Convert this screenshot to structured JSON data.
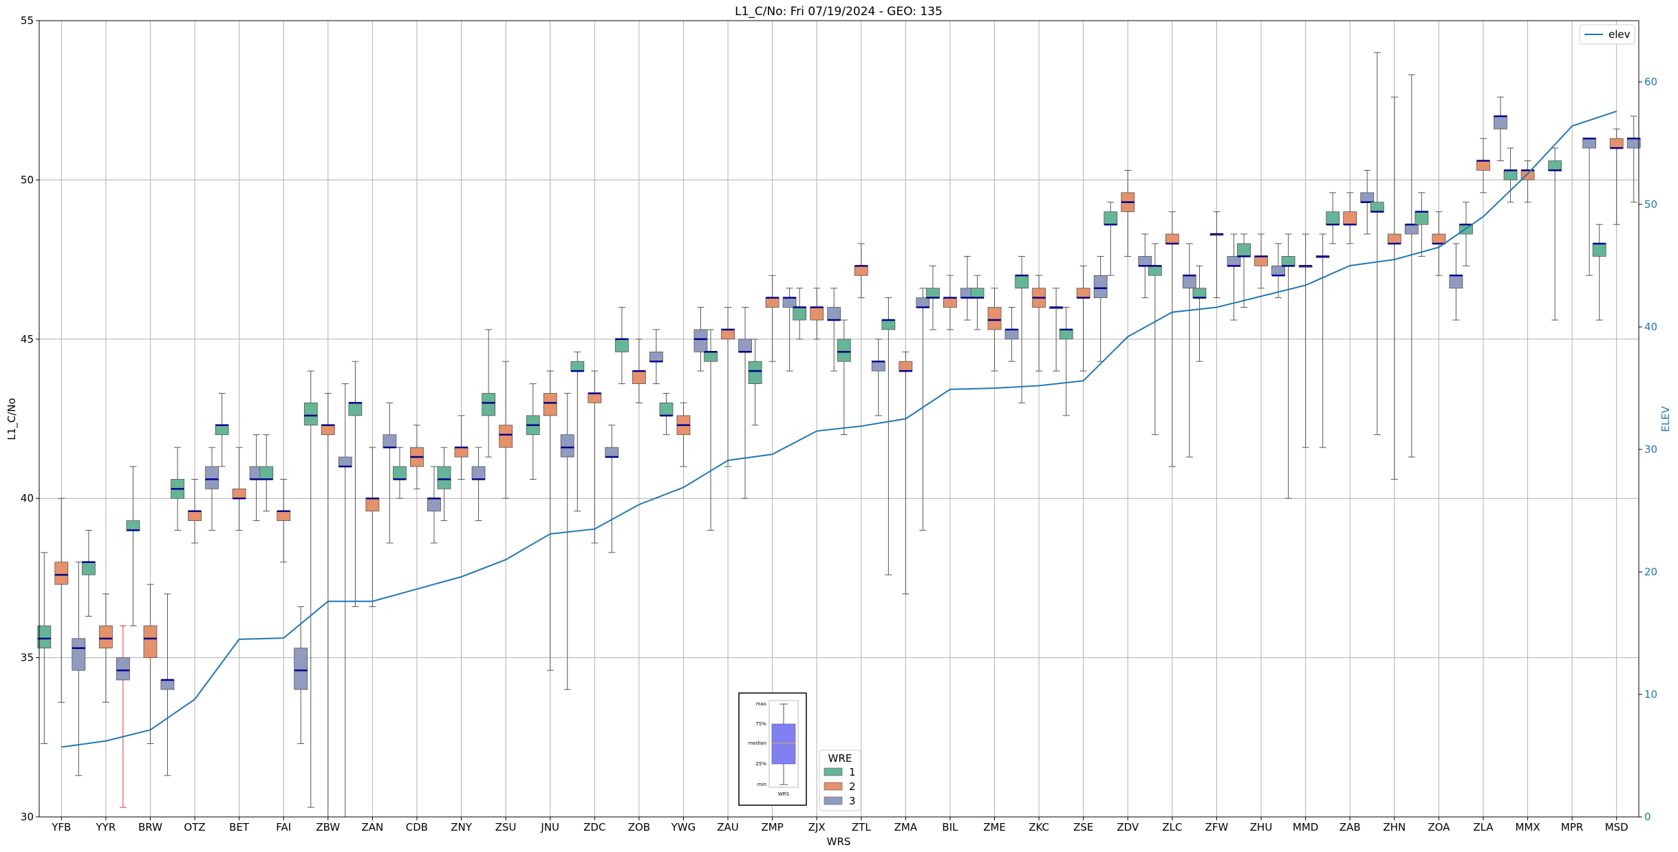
{
  "chart_data": {
    "type": "box",
    "title": "L1_C/No: Fri 07/19/2024 - GEO: 135",
    "xlabel": "WRS",
    "ylabel": "L1_C/No",
    "y2label": "ELEV",
    "ylim": [
      30,
      55
    ],
    "y2lim": [
      0,
      65
    ],
    "yticks": [
      30,
      35,
      40,
      45,
      50,
      55
    ],
    "y2ticks": [
      0,
      10,
      20,
      30,
      40,
      50,
      60
    ],
    "grid": true,
    "categories": [
      "YFB",
      "YYR",
      "BRW",
      "OTZ",
      "BET",
      "FAI",
      "ZBW",
      "ZAN",
      "CDB",
      "ZNY",
      "ZSU",
      "JNU",
      "ZDC",
      "ZOB",
      "YWG",
      "ZAU",
      "ZMP",
      "ZJX",
      "ZTL",
      "ZMA",
      "BIL",
      "ZME",
      "ZKC",
      "ZSE",
      "ZDV",
      "ZLC",
      "ZFW",
      "ZHU",
      "MMD",
      "ZAB",
      "ZHN",
      "ZOA",
      "ZLA",
      "MMX",
      "MPR",
      "MSD"
    ],
    "legend_wre": {
      "title": "WRE",
      "labels": [
        "1",
        "2",
        "3"
      ],
      "colors": [
        "#66b596",
        "#e5916c",
        "#919bc0"
      ]
    },
    "legend_line": {
      "label": "elev",
      "color": "#1f77b4"
    },
    "box_colors": {
      "median": "#00008b",
      "whisker": "#555555",
      "outlier_whisker": "#e8333a"
    },
    "inset": {
      "labels": [
        "max",
        "75%",
        "median",
        "25%",
        "min"
      ],
      "xlabel": "WRS",
      "fill": "#8080f0"
    },
    "elev": [
      5.7,
      6.2,
      7.1,
      9.6,
      14.5,
      14.6,
      17.6,
      17.6,
      18.6,
      19.6,
      21.0,
      23.1,
      23.5,
      25.5,
      26.9,
      29.1,
      29.6,
      31.5,
      31.9,
      32.5,
      34.9,
      35.0,
      35.2,
      35.6,
      39.2,
      41.2,
      41.6,
      42.5,
      43.4,
      45.0,
      45.5,
      46.5,
      49.0,
      52.5,
      56.4,
      57.6
    ],
    "boxes": [
      {
        "cat": "YFB",
        "wre": 1,
        "min": 32.3,
        "q1": 35.3,
        "median": 35.6,
        "q3": 36.0,
        "max": 38.3
      },
      {
        "cat": "YFB",
        "wre": 2,
        "min": 33.6,
        "q1": 37.3,
        "median": 37.6,
        "q3": 38.0,
        "max": 40.0
      },
      {
        "cat": "YFB",
        "wre": 3,
        "min": 31.3,
        "q1": 34.6,
        "median": 35.3,
        "q3": 35.6,
        "max": 38.0
      },
      {
        "cat": "YYR",
        "wre": 1,
        "min": 36.3,
        "q1": 37.6,
        "median": 38.0,
        "q3": 38.0,
        "max": 39.0
      },
      {
        "cat": "YYR",
        "wre": 2,
        "min": 33.6,
        "q1": 35.3,
        "median": 35.6,
        "q3": 36.0,
        "max": 37.0
      },
      {
        "cat": "YYR",
        "wre": 3,
        "min": 30.3,
        "q1": 34.3,
        "median": 34.6,
        "q3": 35.0,
        "max": 36.0,
        "outlier": true
      },
      {
        "cat": "BRW",
        "wre": 1,
        "min": 36.0,
        "q1": 39.0,
        "median": 39.0,
        "q3": 39.3,
        "max": 41.0
      },
      {
        "cat": "BRW",
        "wre": 2,
        "min": 32.3,
        "q1": 35.0,
        "median": 35.6,
        "q3": 36.0,
        "max": 37.3
      },
      {
        "cat": "BRW",
        "wre": 3,
        "min": 31.3,
        "q1": 34.0,
        "median": 34.3,
        "q3": 34.3,
        "max": 37.0
      },
      {
        "cat": "OTZ",
        "wre": 1,
        "min": 39.0,
        "q1": 40.0,
        "median": 40.3,
        "q3": 40.6,
        "max": 41.6
      },
      {
        "cat": "OTZ",
        "wre": 2,
        "min": 38.6,
        "q1": 39.3,
        "median": 39.6,
        "q3": 39.6,
        "max": 40.6
      },
      {
        "cat": "OTZ",
        "wre": 3,
        "min": 39.0,
        "q1": 40.3,
        "median": 40.6,
        "q3": 41.0,
        "max": 41.6
      },
      {
        "cat": "BET",
        "wre": 1,
        "min": 41.0,
        "q1": 42.0,
        "median": 42.3,
        "q3": 42.3,
        "max": 43.3
      },
      {
        "cat": "BET",
        "wre": 2,
        "min": 39.0,
        "q1": 40.0,
        "median": 40.0,
        "q3": 40.3,
        "max": 41.6
      },
      {
        "cat": "BET",
        "wre": 3,
        "min": 39.3,
        "q1": 40.6,
        "median": 40.6,
        "q3": 41.0,
        "max": 42.0
      },
      {
        "cat": "FAI",
        "wre": 1,
        "min": 39.6,
        "q1": 40.6,
        "median": 40.6,
        "q3": 41.0,
        "max": 42.0
      },
      {
        "cat": "FAI",
        "wre": 2,
        "min": 38.0,
        "q1": 39.3,
        "median": 39.6,
        "q3": 39.6,
        "max": 40.6
      },
      {
        "cat": "FAI",
        "wre": 3,
        "min": 32.3,
        "q1": 34.0,
        "median": 34.6,
        "q3": 35.3,
        "max": 36.6
      },
      {
        "cat": "ZBW",
        "wre": 1,
        "min": 30.3,
        "q1": 42.3,
        "median": 42.6,
        "q3": 43.0,
        "max": 44.0
      },
      {
        "cat": "ZBW",
        "wre": 2,
        "min": 30.0,
        "q1": 42.0,
        "median": 42.3,
        "q3": 42.3,
        "max": 43.3
      },
      {
        "cat": "ZBW",
        "wre": 3,
        "min": 30.0,
        "q1": 41.0,
        "median": 41.0,
        "q3": 41.3,
        "max": 43.6
      },
      {
        "cat": "ZAN",
        "wre": 1,
        "min": 36.6,
        "q1": 42.6,
        "median": 43.0,
        "q3": 43.0,
        "max": 44.3
      },
      {
        "cat": "ZAN",
        "wre": 2,
        "min": 36.6,
        "q1": 39.6,
        "median": 40.0,
        "q3": 40.0,
        "max": 41.6
      },
      {
        "cat": "ZAN",
        "wre": 3,
        "min": 38.6,
        "q1": 41.6,
        "median": 41.6,
        "q3": 42.0,
        "max": 43.0
      },
      {
        "cat": "CDB",
        "wre": 1,
        "min": 40.0,
        "q1": 40.6,
        "median": 40.6,
        "q3": 41.0,
        "max": 41.6
      },
      {
        "cat": "CDB",
        "wre": 2,
        "min": 40.3,
        "q1": 41.0,
        "median": 41.3,
        "q3": 41.6,
        "max": 42.3
      },
      {
        "cat": "CDB",
        "wre": 3,
        "min": 38.6,
        "q1": 39.6,
        "median": 40.0,
        "q3": 40.0,
        "max": 41.0
      },
      {
        "cat": "ZNY",
        "wre": 1,
        "min": 39.3,
        "q1": 40.3,
        "median": 40.6,
        "q3": 41.0,
        "max": 41.6
      },
      {
        "cat": "ZNY",
        "wre": 2,
        "min": 40.6,
        "q1": 41.3,
        "median": 41.6,
        "q3": 41.6,
        "max": 42.6
      },
      {
        "cat": "ZNY",
        "wre": 3,
        "min": 39.3,
        "q1": 40.6,
        "median": 40.6,
        "q3": 41.0,
        "max": 41.6
      },
      {
        "cat": "ZSU",
        "wre": 1,
        "min": 41.3,
        "q1": 42.6,
        "median": 43.0,
        "q3": 43.3,
        "max": 45.3
      },
      {
        "cat": "ZSU",
        "wre": 2,
        "min": 40.0,
        "q1": 41.6,
        "median": 42.0,
        "q3": 42.3,
        "max": 44.3
      },
      {
        "cat": "ZSU",
        "wre": 3,
        "min": null,
        "q1": null,
        "median": null,
        "q3": null,
        "max": null
      },
      {
        "cat": "JNU",
        "wre": 1,
        "min": 40.6,
        "q1": 42.0,
        "median": 42.3,
        "q3": 42.6,
        "max": 43.6
      },
      {
        "cat": "JNU",
        "wre": 2,
        "min": 34.6,
        "q1": 42.6,
        "median": 43.0,
        "q3": 43.3,
        "max": 44.0
      },
      {
        "cat": "JNU",
        "wre": 3,
        "min": 34.0,
        "q1": 41.3,
        "median": 41.6,
        "q3": 42.0,
        "max": 43.3
      },
      {
        "cat": "ZDC",
        "wre": 1,
        "min": 39.6,
        "q1": 44.0,
        "median": 44.0,
        "q3": 44.3,
        "max": 44.6
      },
      {
        "cat": "ZDC",
        "wre": 2,
        "min": 38.6,
        "q1": 43.0,
        "median": 43.3,
        "q3": 43.3,
        "max": 44.0
      },
      {
        "cat": "ZDC",
        "wre": 3,
        "min": 38.3,
        "q1": 41.3,
        "median": 41.3,
        "q3": 41.6,
        "max": 42.3
      },
      {
        "cat": "ZOB",
        "wre": 1,
        "min": 43.6,
        "q1": 44.6,
        "median": 45.0,
        "q3": 45.0,
        "max": 46.0
      },
      {
        "cat": "ZOB",
        "wre": 2,
        "min": 43.0,
        "q1": 43.6,
        "median": 44.0,
        "q3": 44.0,
        "max": 45.0
      },
      {
        "cat": "ZOB",
        "wre": 3,
        "min": 43.6,
        "q1": 44.3,
        "median": 44.3,
        "q3": 44.6,
        "max": 45.3
      },
      {
        "cat": "YWG",
        "wre": 1,
        "min": 42.0,
        "q1": 42.6,
        "median": 42.6,
        "q3": 43.0,
        "max": 43.3
      },
      {
        "cat": "YWG",
        "wre": 2,
        "min": 41.0,
        "q1": 42.0,
        "median": 42.3,
        "q3": 42.6,
        "max": 43.0
      },
      {
        "cat": "YWG",
        "wre": 3,
        "min": 44.0,
        "q1": 44.6,
        "median": 45.0,
        "q3": 45.3,
        "max": 46.0
      },
      {
        "cat": "ZAU",
        "wre": 1,
        "min": 39.0,
        "q1": 44.3,
        "median": 44.6,
        "q3": 44.6,
        "max": 45.3
      },
      {
        "cat": "ZAU",
        "wre": 2,
        "min": 41.0,
        "q1": 45.0,
        "median": 45.3,
        "q3": 45.3,
        "max": 46.0
      },
      {
        "cat": "ZAU",
        "wre": 3,
        "min": 40.0,
        "q1": 44.6,
        "median": 44.6,
        "q3": 45.0,
        "max": 46.0
      },
      {
        "cat": "ZMP",
        "wre": 1,
        "min": 42.3,
        "q1": 43.6,
        "median": 44.0,
        "q3": 44.3,
        "max": 45.0
      },
      {
        "cat": "ZMP",
        "wre": 2,
        "min": 44.3,
        "q1": 46.0,
        "median": 46.3,
        "q3": 46.3,
        "max": 47.0
      },
      {
        "cat": "ZMP",
        "wre": 3,
        "min": 44.0,
        "q1": 46.0,
        "median": 46.3,
        "q3": 46.3,
        "max": 46.6
      },
      {
        "cat": "ZJX",
        "wre": 1,
        "min": 45.0,
        "q1": 45.6,
        "median": 46.0,
        "q3": 46.0,
        "max": 46.6
      },
      {
        "cat": "ZJX",
        "wre": 2,
        "min": 45.0,
        "q1": 45.6,
        "median": 46.0,
        "q3": 46.0,
        "max": 46.6
      },
      {
        "cat": "ZJX",
        "wre": 3,
        "min": 44.0,
        "q1": 45.6,
        "median": 45.6,
        "q3": 46.0,
        "max": 46.6
      },
      {
        "cat": "ZTL",
        "wre": 1,
        "min": 42.0,
        "q1": 44.3,
        "median": 44.6,
        "q3": 45.0,
        "max": 45.6
      },
      {
        "cat": "ZTL",
        "wre": 2,
        "min": 46.3,
        "q1": 47.0,
        "median": 47.3,
        "q3": 47.3,
        "max": 48.0
      },
      {
        "cat": "ZTL",
        "wre": 3,
        "min": 42.6,
        "q1": 44.0,
        "median": 44.3,
        "q3": 44.3,
        "max": 45.0
      },
      {
        "cat": "ZMA",
        "wre": 1,
        "min": 37.6,
        "q1": 45.3,
        "median": 45.6,
        "q3": 45.6,
        "max": 46.3
      },
      {
        "cat": "ZMA",
        "wre": 2,
        "min": 37.0,
        "q1": 44.0,
        "median": 44.0,
        "q3": 44.3,
        "max": 44.6
      },
      {
        "cat": "ZMA",
        "wre": 3,
        "min": 39.0,
        "q1": 46.0,
        "median": 46.0,
        "q3": 46.3,
        "max": 46.6
      },
      {
        "cat": "BIL",
        "wre": 1,
        "min": 45.3,
        "q1": 46.3,
        "median": 46.3,
        "q3": 46.6,
        "max": 47.3
      },
      {
        "cat": "BIL",
        "wre": 2,
        "min": 45.3,
        "q1": 46.0,
        "median": 46.3,
        "q3": 46.3,
        "max": 47.0
      },
      {
        "cat": "BIL",
        "wre": 3,
        "min": 45.6,
        "q1": 46.3,
        "median": 46.3,
        "q3": 46.6,
        "max": 47.6
      },
      {
        "cat": "ZME",
        "wre": 1,
        "min": 45.3,
        "q1": 46.3,
        "median": 46.3,
        "q3": 46.6,
        "max": 47.0
      },
      {
        "cat": "ZME",
        "wre": 2,
        "min": 44.0,
        "q1": 45.3,
        "median": 45.6,
        "q3": 46.0,
        "max": 46.6
      },
      {
        "cat": "ZME",
        "wre": 3,
        "min": 44.3,
        "q1": 45.0,
        "median": 45.3,
        "q3": 45.3,
        "max": 46.0
      },
      {
        "cat": "ZKC",
        "wre": 1,
        "min": 43.0,
        "q1": 46.6,
        "median": 47.0,
        "q3": 47.0,
        "max": 47.6
      },
      {
        "cat": "ZKC",
        "wre": 2,
        "min": 44.0,
        "q1": 46.0,
        "median": 46.3,
        "q3": 46.6,
        "max": 47.0
      },
      {
        "cat": "ZKC",
        "wre": 3,
        "min": 44.0,
        "q1": 46.0,
        "median": 46.0,
        "q3": 46.0,
        "max": 46.6
      },
      {
        "cat": "ZSE",
        "wre": 1,
        "min": 42.6,
        "q1": 45.0,
        "median": 45.3,
        "q3": 45.3,
        "max": 46.0
      },
      {
        "cat": "ZSE",
        "wre": 2,
        "min": 44.0,
        "q1": 46.3,
        "median": 46.3,
        "q3": 46.6,
        "max": 47.3
      },
      {
        "cat": "ZSE",
        "wre": 3,
        "min": 44.3,
        "q1": 46.3,
        "median": 46.6,
        "q3": 47.0,
        "max": 47.6
      },
      {
        "cat": "ZDV",
        "wre": 1,
        "min": 47.0,
        "q1": 48.6,
        "median": 48.6,
        "q3": 49.0,
        "max": 49.3
      },
      {
        "cat": "ZDV",
        "wre": 2,
        "min": 47.6,
        "q1": 49.0,
        "median": 49.3,
        "q3": 49.6,
        "max": 50.3
      },
      {
        "cat": "ZDV",
        "wre": 3,
        "min": 46.3,
        "q1": 47.3,
        "median": 47.3,
        "q3": 47.6,
        "max": 48.3
      },
      {
        "cat": "ZLC",
        "wre": 1,
        "min": 42.0,
        "q1": 47.0,
        "median": 47.3,
        "q3": 47.3,
        "max": 48.0
      },
      {
        "cat": "ZLC",
        "wre": 2,
        "min": 41.0,
        "q1": 48.0,
        "median": 48.0,
        "q3": 48.3,
        "max": 49.0
      },
      {
        "cat": "ZLC",
        "wre": 3,
        "min": 41.3,
        "q1": 46.6,
        "median": 47.0,
        "q3": 47.0,
        "max": 48.0
      },
      {
        "cat": "ZFW",
        "wre": 1,
        "min": 44.3,
        "q1": 46.3,
        "median": 46.3,
        "q3": 46.6,
        "max": 47.3
      },
      {
        "cat": "ZFW",
        "wre": 2,
        "min": 46.3,
        "q1": 48.3,
        "median": 48.3,
        "q3": 48.3,
        "max": 49.0
      },
      {
        "cat": "ZFW",
        "wre": 3,
        "min": 45.6,
        "q1": 47.3,
        "median": 47.3,
        "q3": 47.6,
        "max": 48.3
      },
      {
        "cat": "ZHU",
        "wre": 1,
        "min": 46.0,
        "q1": 47.6,
        "median": 47.6,
        "q3": 48.0,
        "max": 48.3
      },
      {
        "cat": "ZHU",
        "wre": 2,
        "min": 46.6,
        "q1": 47.3,
        "median": 47.6,
        "q3": 47.6,
        "max": 48.3
      },
      {
        "cat": "ZHU",
        "wre": 3,
        "min": 46.3,
        "q1": 47.0,
        "median": 47.0,
        "q3": 47.3,
        "max": 48.0
      },
      {
        "cat": "MMD",
        "wre": 1,
        "min": 40.0,
        "q1": 47.3,
        "median": 47.3,
        "q3": 47.6,
        "max": 48.3
      },
      {
        "cat": "MMD",
        "wre": 2,
        "min": 41.6,
        "q1": 47.3,
        "median": 47.3,
        "q3": 47.3,
        "max": 48.3
      },
      {
        "cat": "MMD",
        "wre": 3,
        "min": 41.6,
        "q1": 47.6,
        "median": 47.6,
        "q3": 47.6,
        "max": 48.3
      },
      {
        "cat": "ZAB",
        "wre": 1,
        "min": 48.0,
        "q1": 48.6,
        "median": 48.6,
        "q3": 49.0,
        "max": 49.6
      },
      {
        "cat": "ZAB",
        "wre": 2,
        "min": 48.0,
        "q1": 48.6,
        "median": 48.6,
        "q3": 49.0,
        "max": 49.6
      },
      {
        "cat": "ZAB",
        "wre": 3,
        "min": 48.3,
        "q1": 49.3,
        "median": 49.3,
        "q3": 49.6,
        "max": 50.3
      },
      {
        "cat": "ZHN",
        "wre": 1,
        "min": 42.0,
        "q1": 49.0,
        "median": 49.0,
        "q3": 49.3,
        "max": 54.0
      },
      {
        "cat": "ZHN",
        "wre": 2,
        "min": 40.6,
        "q1": 48.0,
        "median": 48.0,
        "q3": 48.3,
        "max": 52.6
      },
      {
        "cat": "ZHN",
        "wre": 3,
        "min": 41.3,
        "q1": 48.3,
        "median": 48.6,
        "q3": 48.6,
        "max": 53.3
      },
      {
        "cat": "ZOA",
        "wre": 1,
        "min": 47.6,
        "q1": 48.6,
        "median": 49.0,
        "q3": 49.0,
        "max": 49.6
      },
      {
        "cat": "ZOA",
        "wre": 2,
        "min": 47.0,
        "q1": 48.0,
        "median": 48.0,
        "q3": 48.3,
        "max": 49.0
      },
      {
        "cat": "ZOA",
        "wre": 3,
        "min": 45.6,
        "q1": 46.6,
        "median": 47.0,
        "q3": 47.0,
        "max": 48.0
      },
      {
        "cat": "ZLA",
        "wre": 1,
        "min": 47.3,
        "q1": 48.3,
        "median": 48.6,
        "q3": 48.6,
        "max": 49.3
      },
      {
        "cat": "ZLA",
        "wre": 2,
        "min": 49.6,
        "q1": 50.3,
        "median": 50.6,
        "q3": 50.6,
        "max": 51.3
      },
      {
        "cat": "ZLA",
        "wre": 3,
        "min": 50.6,
        "q1": 51.6,
        "median": 52.0,
        "q3": 52.0,
        "max": 52.6
      },
      {
        "cat": "MMX",
        "wre": 1,
        "min": 49.3,
        "q1": 50.0,
        "median": 50.3,
        "q3": 50.3,
        "max": 51.0
      },
      {
        "cat": "MMX",
        "wre": 2,
        "min": 49.3,
        "q1": 50.0,
        "median": 50.3,
        "q3": 50.3,
        "max": 50.6
      },
      {
        "cat": "MMX",
        "wre": 3,
        "min": null,
        "q1": null,
        "median": null,
        "q3": null,
        "max": null
      },
      {
        "cat": "MPR",
        "wre": 1,
        "min": 45.6,
        "q1": 50.3,
        "median": 50.3,
        "q3": 50.6,
        "max": 51.0
      },
      {
        "cat": "MPR",
        "wre": 2,
        "min": null,
        "q1": null,
        "median": null,
        "q3": null,
        "max": null
      },
      {
        "cat": "MPR",
        "wre": 3,
        "min": 47.0,
        "q1": 51.0,
        "median": 51.3,
        "q3": 51.3,
        "max": 51.3
      },
      {
        "cat": "MSD",
        "wre": 1,
        "min": 45.6,
        "q1": 47.6,
        "median": 48.0,
        "q3": 48.0,
        "max": 48.6
      },
      {
        "cat": "MSD",
        "wre": 2,
        "min": 48.6,
        "q1": 51.0,
        "median": 51.0,
        "q3": 51.3,
        "max": 51.6
      },
      {
        "cat": "MSD",
        "wre": 3,
        "min": 49.3,
        "q1": 51.0,
        "median": 51.3,
        "q3": 51.3,
        "max": 52.0
      }
    ]
  }
}
